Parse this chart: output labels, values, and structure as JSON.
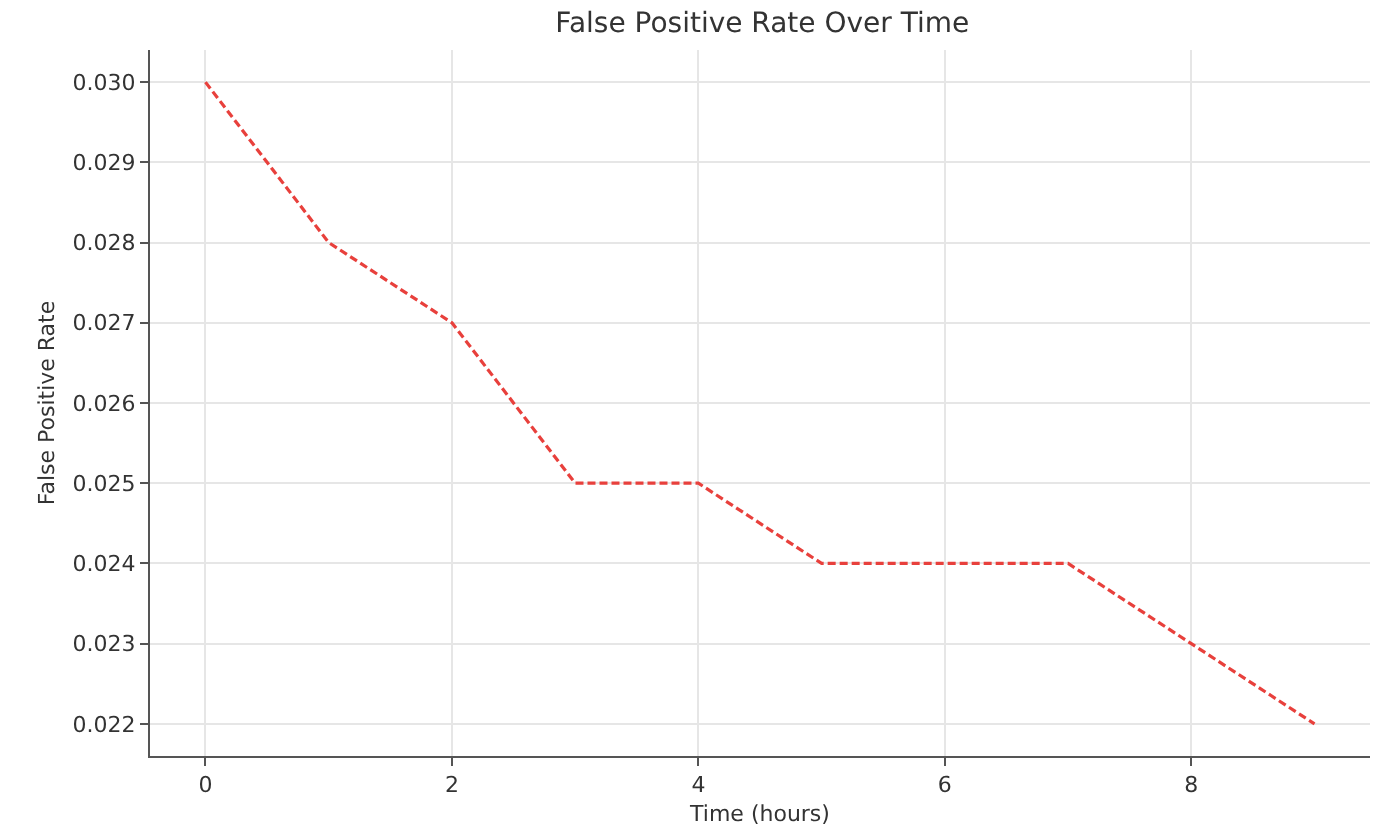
{
  "chart_data": {
    "type": "line",
    "title": "False Positive Rate Over Time",
    "xlabel": "Time (hours)",
    "ylabel": "False Positive Rate",
    "x": [
      0,
      1,
      2,
      3,
      4,
      5,
      6,
      7,
      8,
      9
    ],
    "series": [
      {
        "color": "#e8403c",
        "values": [
          0.03,
          0.028,
          0.027,
          0.025,
          0.025,
          0.024,
          0.024,
          0.024,
          0.023,
          0.022
        ]
      }
    ],
    "xlim": [
      -0.45,
      9.45
    ],
    "xticks": [
      0,
      2,
      4,
      6,
      8
    ],
    "ylim": [
      0.0216,
      0.0304
    ],
    "yticks": [
      {
        "value": 0.022,
        "label": "0.022"
      },
      {
        "value": 0.023,
        "label": "0.023"
      },
      {
        "value": 0.024,
        "label": "0.024"
      },
      {
        "value": 0.025,
        "label": "0.025"
      },
      {
        "value": 0.026,
        "label": "0.026"
      },
      {
        "value": 0.027,
        "label": "0.027"
      },
      {
        "value": 0.028,
        "label": "0.028"
      },
      {
        "value": 0.029,
        "label": "0.029"
      },
      {
        "value": 0.03,
        "label": "0.030"
      }
    ],
    "grid": true,
    "line_style": "dashed",
    "marker": "none",
    "legend": false
  }
}
